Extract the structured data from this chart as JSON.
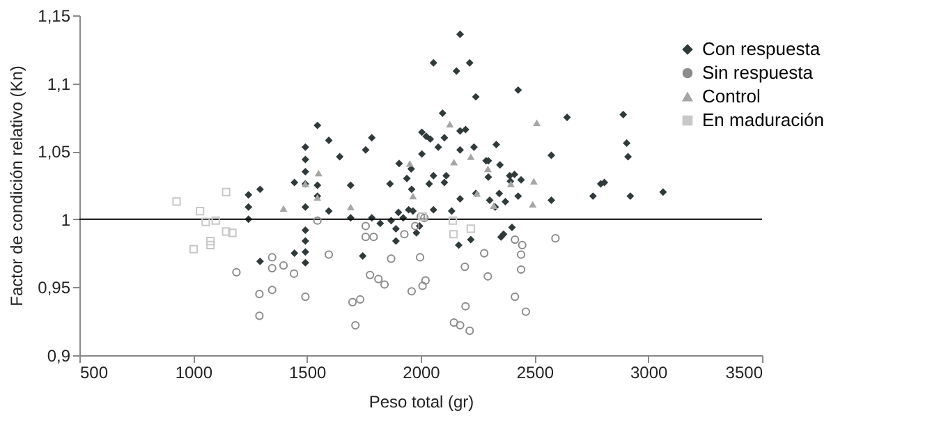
{
  "chart_data": {
    "type": "scatter",
    "xlabel": "Peso total (gr)",
    "ylabel": "Factor de condición relativo (Kn)",
    "xlim": [
      500,
      3500
    ],
    "xticks": [
      500,
      1000,
      1500,
      2000,
      2500,
      3000,
      3500
    ],
    "ylim": [
      0.9,
      1.15
    ],
    "yticks": [
      {
        "value": 0.9,
        "label": "0,9"
      },
      {
        "value": 0.95,
        "label": "0,95"
      },
      1,
      {
        "value": 1.05,
        "label": "1,05"
      },
      {
        "value": 1.1,
        "label": "1,1"
      },
      {
        "value": 1.15,
        "label": "1,15"
      }
    ],
    "grid": false,
    "legend": "top right",
    "ref_lines": [
      {
        "axis": "y",
        "value": 1,
        "color": "#000000"
      }
    ],
    "series": [
      {
        "name": "Con respuesta",
        "color": "#2f3a3a",
        "marker": "diamond",
        "x": [
          1243,
          1243,
          1243,
          1294,
          1294,
          1445,
          1445,
          1493,
          1493,
          1493,
          1493,
          1493,
          1493,
          1493,
          1493,
          1493,
          1546,
          1546,
          1546,
          1596,
          1596,
          1644,
          1692,
          1692,
          1745,
          1758,
          1785,
          1785,
          1822,
          1865,
          1870,
          1891,
          1891,
          1902,
          1905,
          1923,
          1939,
          1947,
          1958,
          1960,
          1966,
          1981,
          1995,
          2005,
          2005,
          2024,
          2037,
          2042,
          2056,
          2056,
          2056,
          2077,
          2096,
          2104,
          2104,
          2112,
          2136,
          2157,
          2167,
          2173,
          2173,
          2173,
          2173,
          2197,
          2215,
          2220,
          2234,
          2242,
          2242,
          2287,
          2297,
          2297,
          2303,
          2327,
          2332,
          2345,
          2348,
          2353,
          2372,
          2364,
          2391,
          2394,
          2401,
          2412,
          2428,
          2428,
          2441,
          2643,
          2574,
          2574,
          2757,
          2791,
          2807,
          2890,
          2905,
          2911,
          2921,
          3065
        ],
        "values": [
          1.018,
          1.009,
          1.0,
          1.022,
          0.969,
          1.027,
          0.975,
          1.053,
          1.044,
          1.035,
          1.026,
          1.009,
          0.992,
          0.984,
          0.976,
          0.968,
          1.069,
          1.025,
          1.017,
          1.058,
          1.006,
          1.046,
          1.025,
          1.001,
          0.973,
          1.051,
          1.06,
          1.001,
          0.997,
          1.026,
          0.999,
          0.984,
          0.993,
          1.005,
          1.041,
          1.001,
          1.03,
          1.007,
          1.037,
          1.022,
          1.006,
          0.99,
          0.995,
          1.048,
          1.064,
          1.061,
          1.026,
          1.059,
          1.032,
          1.007,
          1.115,
          1.053,
          1.078,
          1.027,
          1.06,
          1.032,
          1.006,
          1.109,
          0.981,
          1.136,
          1.065,
          1.051,
          1.015,
          1.066,
          1.115,
          0.985,
          1.053,
          1.09,
          1.019,
          1.043,
          1.043,
          1.031,
          1.014,
          1.009,
          1.055,
          1.019,
          1.04,
          0.987,
          1.013,
          0.989,
          1.032,
          1.028,
          0.994,
          1.033,
          1.095,
          1.017,
          1.029,
          1.075,
          1.047,
          1.014,
          1.017,
          1.026,
          1.027,
          1.077,
          1.056,
          1.046,
          1.017,
          1.02
        ]
      },
      {
        "name": "Sin respuesta",
        "color": "#8c8c8c",
        "marker": "circle",
        "x": [
          1190,
          1291,
          1291,
          1347,
          1347,
          1347,
          1397,
          1443,
          1493,
          1546,
          1596,
          1700,
          1713,
          1734,
          1758,
          1758,
          1777,
          1793,
          1814,
          1841,
          1870,
          1928,
          1960,
          1976,
          1997,
          2008,
          2021,
          2000,
          2016,
          2146,
          2173,
          2194,
          2197,
          2215,
          2279,
          2295,
          2414,
          2414,
          2441,
          2441,
          2446,
          2462,
          2592
        ],
        "values": [
          0.961,
          0.945,
          0.929,
          0.972,
          0.964,
          0.948,
          0.966,
          0.96,
          0.943,
          0.999,
          0.974,
          0.939,
          0.922,
          0.941,
          0.995,
          0.987,
          0.959,
          0.987,
          0.956,
          0.952,
          0.971,
          0.989,
          0.947,
          0.995,
          0.972,
          0.951,
          0.955,
          1.002,
          1.001,
          0.924,
          0.922,
          0.965,
          0.936,
          0.918,
          0.975,
          0.958,
          0.985,
          0.943,
          0.963,
          0.974,
          0.981,
          0.932,
          0.986
        ]
      },
      {
        "name": "Control",
        "color": "#a6a6a6",
        "marker": "triangle",
        "x": [
          1397,
          1493,
          1551,
          1546,
          1692,
          1952,
          1966,
          2128,
          2146,
          2220,
          2247,
          2295,
          2321,
          2396,
          2497,
          2492,
          2510
        ],
        "values": [
          1.008,
          1.026,
          1.034,
          1.016,
          1.009,
          1.041,
          1.017,
          1.07,
          1.042,
          1.046,
          1.019,
          1.037,
          1.01,
          1.026,
          1.028,
          1.011,
          1.071
        ]
      },
      {
        "name": "En maduración",
        "color": "#c8c8c8",
        "marker": "square",
        "x": [
          927,
          1030,
          1055,
          1099,
          1145,
          1002,
          1076,
          1076,
          1145,
          1172,
          2008,
          2141,
          2144,
          2220
        ],
        "values": [
          1.013,
          1.006,
          0.998,
          0.999,
          1.02,
          0.978,
          0.984,
          0.981,
          0.991,
          0.99,
          1.002,
          0.999,
          0.989,
          0.993
        ]
      }
    ]
  }
}
